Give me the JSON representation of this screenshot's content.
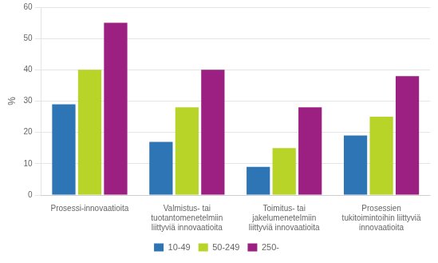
{
  "chart_data": {
    "type": "bar",
    "categories": [
      "Prosessi-innovaatioita",
      "Valmistus- tai\ntuotantomenetelmiin\nliittyviä innovaatioita",
      "Toimitus- tai\njakelumenetelmiin\nliittyviä innovaatioita",
      "Prosessien\ntukitoimintoihin liittyviä\ninnovaatioita"
    ],
    "series": [
      {
        "name": "10-49",
        "color": "#2e75b6",
        "values": [
          29,
          17,
          9,
          19
        ]
      },
      {
        "name": "50-249",
        "color": "#b8d429",
        "values": [
          40,
          28,
          15,
          25
        ]
      },
      {
        "name": "250-",
        "color": "#9b2082",
        "values": [
          55,
          40,
          28,
          38
        ]
      }
    ],
    "ylabel": "%",
    "ylim": [
      0,
      60
    ],
    "yticks": [
      0,
      10,
      20,
      30,
      40,
      50,
      60
    ],
    "grid": true,
    "legend": "bottom"
  }
}
